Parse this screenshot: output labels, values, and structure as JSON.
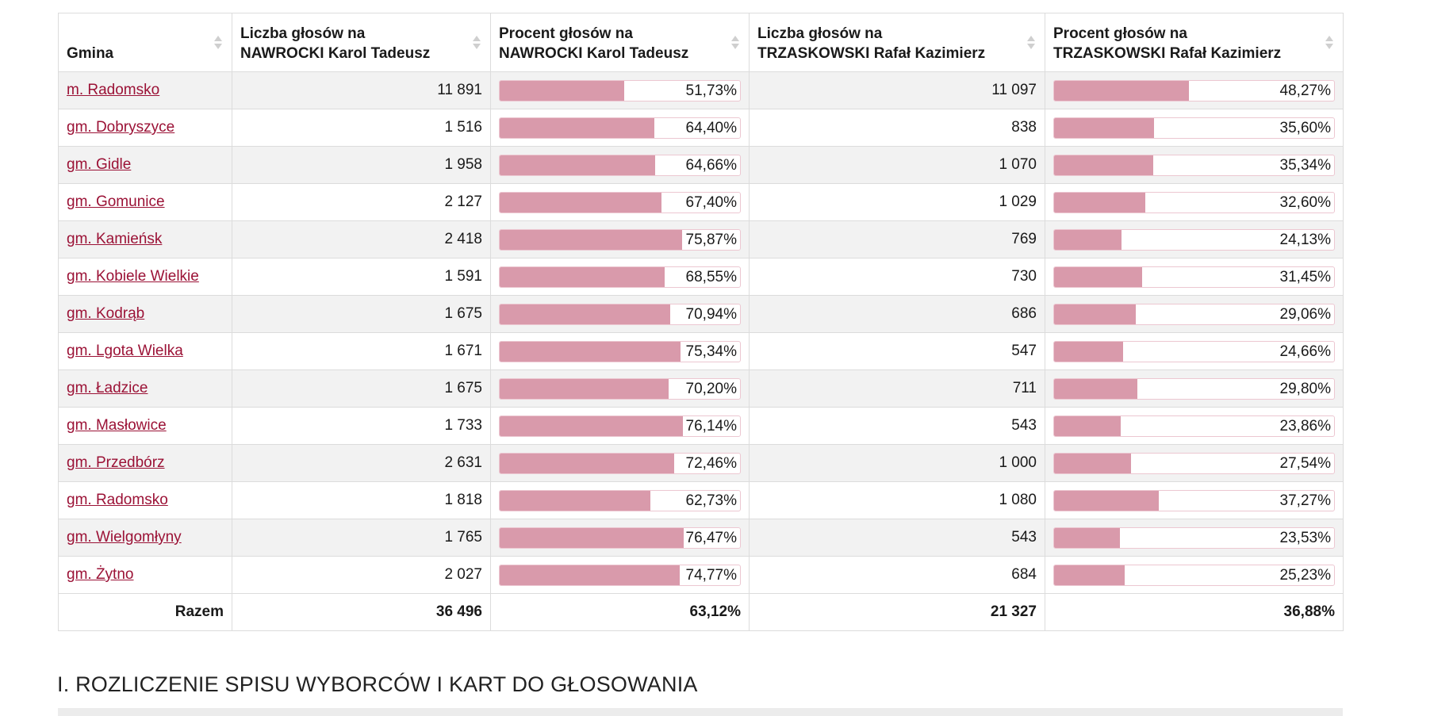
{
  "table": {
    "headers": [
      {
        "line1": "Gmina",
        "line2": ""
      },
      {
        "line1": "Liczba głosów na",
        "line2": "NAWROCKI Karol Tadeusz"
      },
      {
        "line1": "Procent głosów na",
        "line2": "NAWROCKI Karol Tadeusz"
      },
      {
        "line1": "Liczba głosów na",
        "line2": "TRZASKOWSKI Rafał Kazimierz"
      },
      {
        "line1": "Procent głosów na",
        "line2": "TRZASKOWSKI Rafał Kazimierz"
      }
    ],
    "rows": [
      {
        "gmina": "m. Radomsko",
        "n_votes": "11 891",
        "n_pct_label": "51,73%",
        "n_pct": 51.73,
        "t_votes": "11 097",
        "t_pct_label": "48,27%",
        "t_pct": 48.27
      },
      {
        "gmina": "gm. Dobryszyce",
        "n_votes": "1 516",
        "n_pct_label": "64,40%",
        "n_pct": 64.4,
        "t_votes": "838",
        "t_pct_label": "35,60%",
        "t_pct": 35.6
      },
      {
        "gmina": "gm. Gidle",
        "n_votes": "1 958",
        "n_pct_label": "64,66%",
        "n_pct": 64.66,
        "t_votes": "1 070",
        "t_pct_label": "35,34%",
        "t_pct": 35.34
      },
      {
        "gmina": "gm. Gomunice",
        "n_votes": "2 127",
        "n_pct_label": "67,40%",
        "n_pct": 67.4,
        "t_votes": "1 029",
        "t_pct_label": "32,60%",
        "t_pct": 32.6
      },
      {
        "gmina": "gm. Kamieńsk",
        "n_votes": "2 418",
        "n_pct_label": "75,87%",
        "n_pct": 75.87,
        "t_votes": "769",
        "t_pct_label": "24,13%",
        "t_pct": 24.13
      },
      {
        "gmina": "gm. Kobiele Wielkie",
        "n_votes": "1 591",
        "n_pct_label": "68,55%",
        "n_pct": 68.55,
        "t_votes": "730",
        "t_pct_label": "31,45%",
        "t_pct": 31.45
      },
      {
        "gmina": "gm. Kodrąb",
        "n_votes": "1 675",
        "n_pct_label": "70,94%",
        "n_pct": 70.94,
        "t_votes": "686",
        "t_pct_label": "29,06%",
        "t_pct": 29.06
      },
      {
        "gmina": "gm. Lgota Wielka",
        "n_votes": "1 671",
        "n_pct_label": "75,34%",
        "n_pct": 75.34,
        "t_votes": "547",
        "t_pct_label": "24,66%",
        "t_pct": 24.66
      },
      {
        "gmina": "gm. Ładzice",
        "n_votes": "1 675",
        "n_pct_label": "70,20%",
        "n_pct": 70.2,
        "t_votes": "711",
        "t_pct_label": "29,80%",
        "t_pct": 29.8
      },
      {
        "gmina": "gm. Masłowice",
        "n_votes": "1 733",
        "n_pct_label": "76,14%",
        "n_pct": 76.14,
        "t_votes": "543",
        "t_pct_label": "23,86%",
        "t_pct": 23.86
      },
      {
        "gmina": "gm. Przedbórz",
        "n_votes": "2 631",
        "n_pct_label": "72,46%",
        "n_pct": 72.46,
        "t_votes": "1 000",
        "t_pct_label": "27,54%",
        "t_pct": 27.54
      },
      {
        "gmina": "gm. Radomsko",
        "n_votes": "1 818",
        "n_pct_label": "62,73%",
        "n_pct": 62.73,
        "t_votes": "1 080",
        "t_pct_label": "37,27%",
        "t_pct": 37.27
      },
      {
        "gmina": "gm. Wielgomłyny",
        "n_votes": "1 765",
        "n_pct_label": "76,47%",
        "n_pct": 76.47,
        "t_votes": "543",
        "t_pct_label": "23,53%",
        "t_pct": 23.53
      },
      {
        "gmina": "gm. Żytno",
        "n_votes": "2 027",
        "n_pct_label": "74,77%",
        "n_pct": 74.77,
        "t_votes": "684",
        "t_pct_label": "25,23%",
        "t_pct": 25.23
      }
    ],
    "total": {
      "label": "Razem",
      "n_votes": "36 496",
      "n_pct_label": "63,12%",
      "t_votes": "21 327",
      "t_pct_label": "36,88%"
    }
  },
  "section_title": "I. ROZLICZENIE SPISU WYBORCÓW I KART DO GŁOSOWANIA",
  "colors": {
    "bar_fill": "#d99aab",
    "bar_border": "#ecc7d1",
    "link": "#9b1236",
    "row_stripe": "#f2f2f2"
  }
}
